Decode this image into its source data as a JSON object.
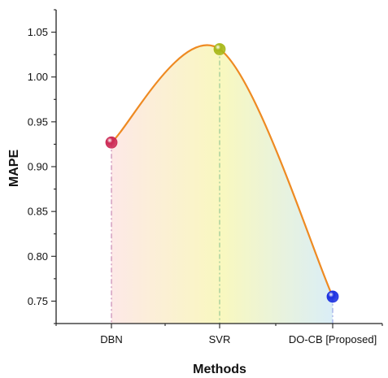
{
  "chart_data": {
    "type": "line",
    "categories": [
      "DBN",
      "SVR",
      "DO-CB [Proposed]"
    ],
    "values": [
      0.927,
      1.031,
      0.755
    ],
    "xlabel": "Methods",
    "ylabel": "MAPE",
    "ylim": [
      0.725,
      1.075
    ],
    "yticks": [
      "0.75",
      "0.80",
      "0.85",
      "0.90",
      "0.95",
      "1.00",
      "1.05"
    ],
    "ytick_values": [
      0.75,
      0.8,
      0.85,
      0.9,
      0.95,
      1.0,
      1.05
    ],
    "grid": false,
    "line_color": "#ee8a22",
    "point_colors": [
      "#cc2a55",
      "#a8b81a",
      "#1a2fe0"
    ],
    "drop_line_colors": [
      "#c88ab4",
      "#96c896",
      "#9aa6e6"
    ],
    "fill_gradient": [
      "#fde6e4",
      "#f8f7b8",
      "#d6ecf6"
    ]
  }
}
